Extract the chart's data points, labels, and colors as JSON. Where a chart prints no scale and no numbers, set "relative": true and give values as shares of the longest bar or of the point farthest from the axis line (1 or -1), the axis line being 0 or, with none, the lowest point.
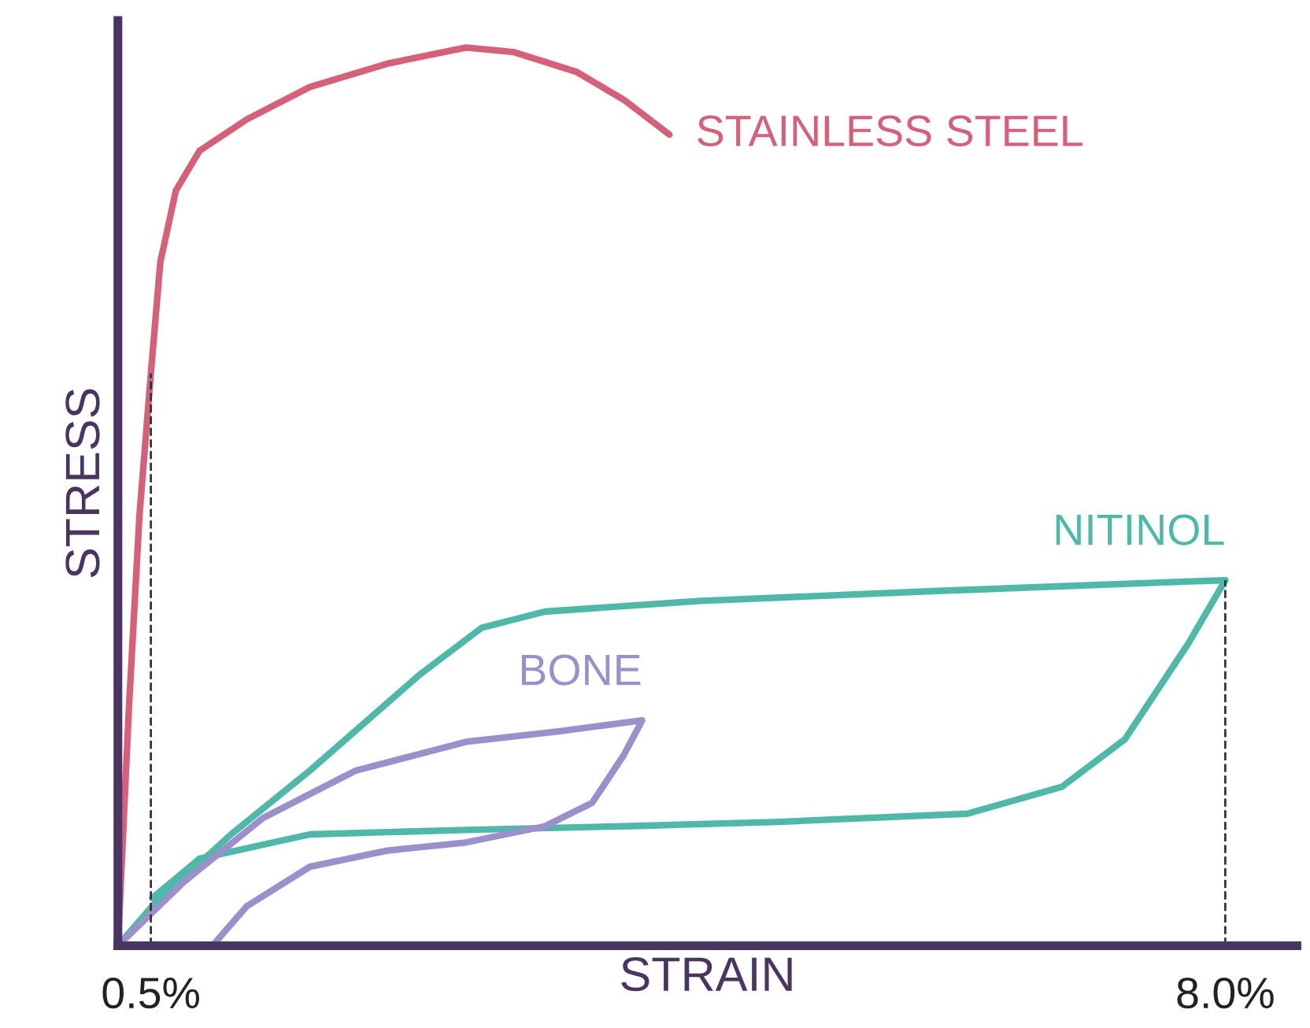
{
  "chart_data": {
    "type": "line",
    "relative": true,
    "xlabel": "STRAIN",
    "ylabel": "STRESS",
    "xlim": [
      0.27,
      8.5
    ],
    "xticks": [
      {
        "value": 0.5,
        "label": "0.5%"
      },
      {
        "value": 8.0,
        "label": "8.0%"
      }
    ],
    "tick_labels": "x",
    "grid": false,
    "legend": false,
    "marker": "none",
    "line_style": "solid",
    "ref_lines": [
      {
        "axis": "x",
        "value": 0.5,
        "label": null,
        "color": "#333333",
        "line_style": "dashed"
      },
      {
        "axis": "x",
        "value": 8.0,
        "label": null,
        "color": "#333333",
        "line_style": "dashed"
      }
    ],
    "series": [
      {
        "name": "STAINLESS STEEL",
        "color": "#d4607a",
        "x": [
          0.27,
          0.347,
          0.42,
          0.5,
          0.566,
          0.675,
          0.84,
          1.17,
          1.61,
          2.15,
          2.7,
          3.03,
          3.47,
          3.8,
          4.12
        ],
        "values": [
          0,
          0.265,
          0.478,
          0.637,
          0.761,
          0.841,
          0.885,
          0.92,
          0.956,
          0.982,
          1.0,
          0.995,
          0.973,
          0.942,
          0.903
        ]
      },
      {
        "name": "NITINOL",
        "color": "#4fb8a8",
        "x": [
          0.27,
          0.51,
          1.06,
          1.61,
          2.37,
          2.81,
          3.25,
          4.34,
          5.99,
          8.0
        ],
        "values": [
          0,
          0.044,
          0.124,
          0.195,
          0.301,
          0.354,
          0.372,
          0.384,
          0.395,
          0.407
        ]
      },
      {
        "color": "#4fb8a8",
        "x": [
          8.0,
          7.74,
          7.3,
          6.86,
          6.2,
          4.89,
          3.8,
          2.7,
          1.61,
          0.84,
          0.51
        ],
        "values": [
          0.407,
          0.336,
          0.23,
          0.177,
          0.147,
          0.138,
          0.133,
          0.129,
          0.124,
          0.097,
          0.053
        ]
      },
      {
        "name": "BONE",
        "color": "#9b8fcc",
        "x": [
          0.27,
          0.73,
          1.28,
          1.93,
          2.7,
          3.36,
          3.93,
          3.8,
          3.58,
          3.25,
          2.7,
          2.15,
          1.61,
          1.17,
          0.93
        ],
        "values": [
          0,
          0.071,
          0.142,
          0.195,
          0.227,
          0.239,
          0.251,
          0.212,
          0.159,
          0.133,
          0.115,
          0.106,
          0.088,
          0.044,
          0
        ]
      }
    ]
  }
}
